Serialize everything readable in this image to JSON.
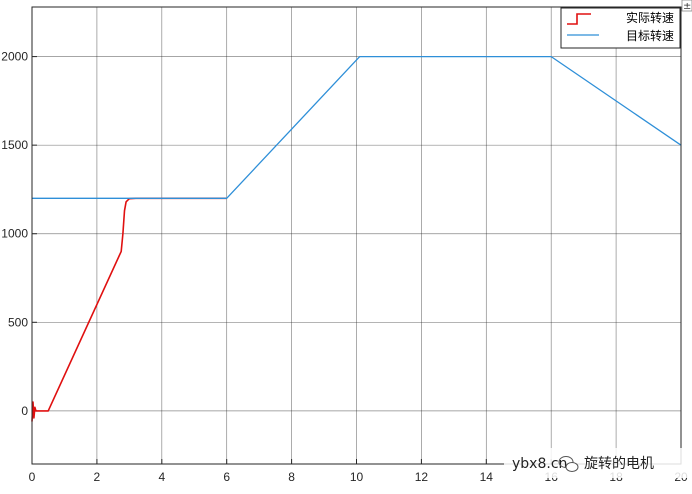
{
  "chart_data": {
    "type": "line",
    "title": "",
    "xlabel": "",
    "ylabel": "",
    "xlim": [
      0,
      20
    ],
    "ylim": [
      -300,
      2280
    ],
    "xticks": [
      0,
      2,
      4,
      6,
      8,
      10,
      12,
      14,
      16,
      18,
      20
    ],
    "yticks": [
      0,
      500,
      1000,
      1500,
      2000
    ],
    "grid": true,
    "legend_position": "top-right",
    "series": [
      {
        "name": "实际转速",
        "color": "#e01010",
        "x": [
          0,
          0.03,
          0.06,
          0.09,
          0.12,
          0.2,
          0.5,
          2.75,
          2.8,
          2.85,
          2.9,
          3.0,
          3.2,
          6.0
        ],
        "y": [
          -60,
          50,
          -40,
          20,
          0,
          0,
          0,
          900,
          1000,
          1130,
          1180,
          1198,
          1200,
          1200
        ]
      },
      {
        "name": "目标转速",
        "color": "#2e8fd8",
        "x": [
          0,
          6,
          10.1,
          16,
          20
        ],
        "y": [
          1200,
          1200,
          2000,
          2000,
          1500
        ]
      }
    ]
  },
  "watermark": {
    "text": "ybx8.cn",
    "account": "旋转的电机"
  },
  "corner_mark": "±"
}
